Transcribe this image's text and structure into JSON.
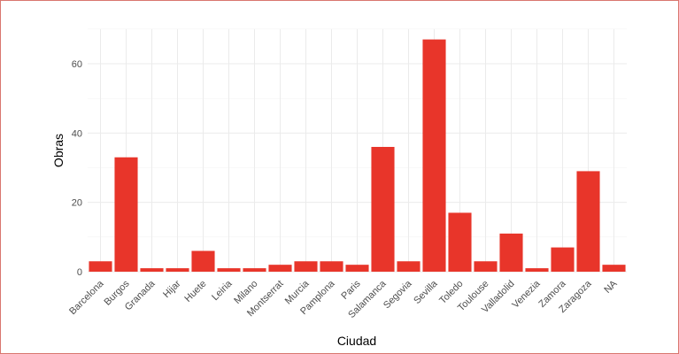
{
  "chart_data": {
    "type": "bar",
    "title": "",
    "xlabel": "Ciudad",
    "ylabel": "Obras",
    "ylim": [
      0,
      70
    ],
    "yticks": [
      0,
      20,
      40,
      60
    ],
    "grid": true,
    "bar_color": "#E8352A",
    "categories": [
      "Barcelona",
      "Burgos",
      "Granada",
      "Hijar",
      "Huete",
      "Leiria",
      "Milano",
      "Montserrat",
      "Murcia",
      "Pamplona",
      "Paris",
      "Salamanca",
      "Segovia",
      "Sevilla",
      "Toledo",
      "Toulouse",
      "Valladolid",
      "Venezia",
      "Zamora",
      "Zaragoza",
      "NA"
    ],
    "values": [
      3,
      33,
      1,
      1,
      6,
      1,
      1,
      2,
      3,
      3,
      2,
      36,
      3,
      67,
      17,
      3,
      11,
      1,
      7,
      29,
      2
    ]
  }
}
